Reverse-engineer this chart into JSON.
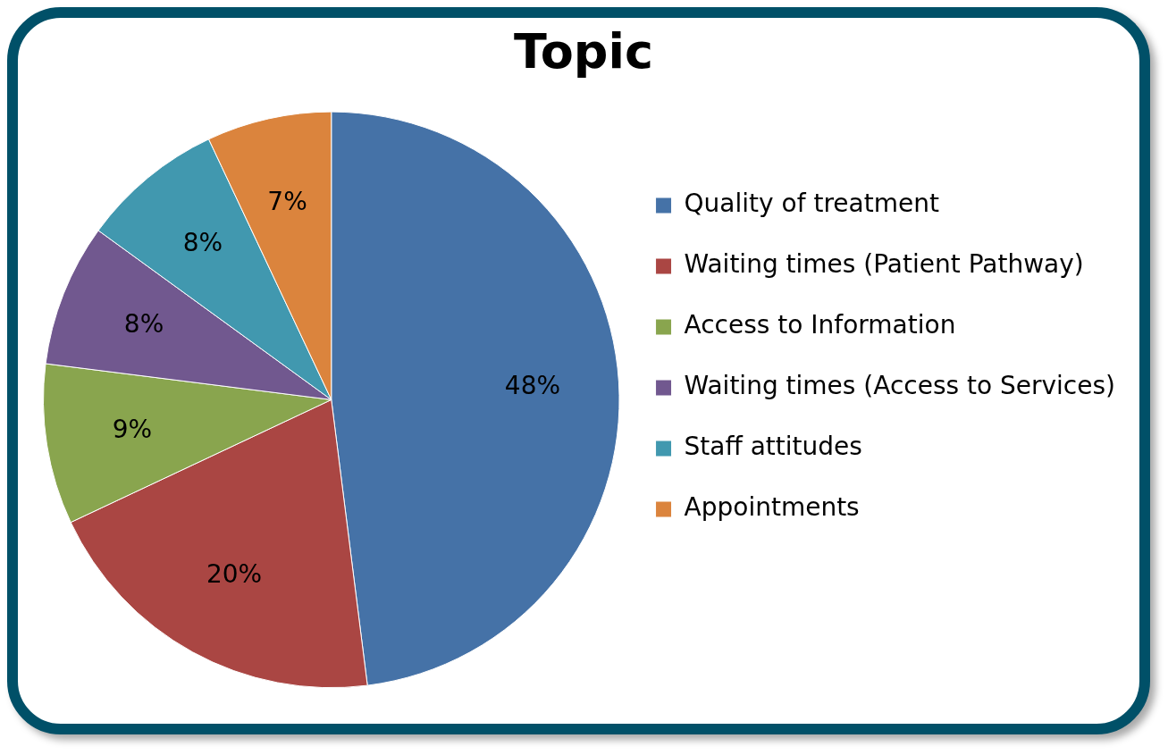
{
  "chart_data": {
    "type": "pie",
    "title": "Topic",
    "categories": [
      "Quality of treatment",
      "Waiting times (Patient Pathway)",
      "Access to Information",
      "Waiting times (Access to Services)",
      "Staff attitudes",
      "Appointments"
    ],
    "values": [
      48,
      20,
      9,
      8,
      8,
      7
    ],
    "colors": [
      "#4572a7",
      "#aa4643",
      "#89a54e",
      "#71588f",
      "#4198af",
      "#db843d"
    ],
    "legend": "right",
    "value_labels": [
      "48%",
      "20%",
      "9%",
      "8%",
      "8%",
      "7%"
    ]
  }
}
